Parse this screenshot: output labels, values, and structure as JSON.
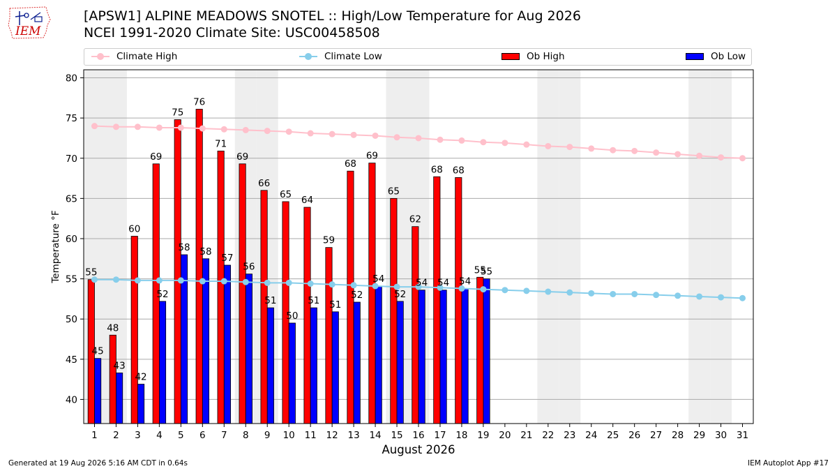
{
  "logo_text": "IEM",
  "title_line1": "[APSW1] ALPINE MEADOWS SNOTEL :: High/Low Temperature for Aug 2026",
  "title_line2": "NCEI 1991-2020 Climate Site: USC00458508",
  "legend": {
    "climate_high": "Climate High",
    "climate_low": "Climate Low",
    "ob_high": "Ob High",
    "ob_low": "Ob Low"
  },
  "footer_left": "Generated at 19 Aug 2026 5:16 AM CDT in 0.64s",
  "footer_right": "IEM Autoplot App #17",
  "colors": {
    "ob_high": "#ff0000",
    "ob_low": "#0000ff",
    "climate_high": "#ffc0cb",
    "climate_low": "#87ceeb",
    "weekend_band": "#eeeeee",
    "grid": "#aaaaaa"
  },
  "chart_data": {
    "type": "bar",
    "xlabel": "August 2026",
    "ylabel": "Temperature °F",
    "ylim": [
      37,
      81
    ],
    "yticks": [
      40,
      45,
      50,
      55,
      60,
      65,
      70,
      75,
      80
    ],
    "grid": "horizontal",
    "legend_position": "top",
    "days": [
      1,
      2,
      3,
      4,
      5,
      6,
      7,
      8,
      9,
      10,
      11,
      12,
      13,
      14,
      15,
      16,
      17,
      18,
      19,
      20,
      21,
      22,
      23,
      24,
      25,
      26,
      27,
      28,
      29,
      30,
      31
    ],
    "shaded_days": [
      1,
      2,
      8,
      9,
      15,
      16,
      22,
      23,
      29,
      30
    ],
    "ob_high": [
      55,
      48,
      60,
      69,
      75,
      76,
      71,
      69,
      66,
      65,
      64,
      59,
      68,
      69,
      65,
      62,
      68,
      68,
      55
    ],
    "ob_low": [
      45,
      43,
      42,
      52,
      58,
      58,
      57,
      56,
      51,
      50,
      51,
      51,
      52,
      54,
      52,
      54,
      54,
      54,
      55
    ],
    "ob_high_labels": [
      "55",
      "48",
      "60",
      "69",
      "75",
      "76",
      "71",
      "69",
      "66",
      "65",
      "64",
      "59",
      "68",
      "69",
      "65",
      "62",
      "68",
      "68",
      "55"
    ],
    "ob_low_labels": [
      "45",
      "43",
      "42",
      "52",
      "58",
      "58",
      "57",
      "56",
      "51",
      "50",
      "51",
      "51",
      "52",
      "54",
      "52",
      "54",
      "54",
      "54",
      "55"
    ],
    "ob_high_plot": [
      54.9,
      48.0,
      60.3,
      69.3,
      74.8,
      76.1,
      70.9,
      69.3,
      66.0,
      64.6,
      63.9,
      58.9,
      68.4,
      69.4,
      65.0,
      61.5,
      67.7,
      67.6,
      55.2
    ],
    "ob_low_plot": [
      45.1,
      43.3,
      41.9,
      52.2,
      58.0,
      57.5,
      56.7,
      55.6,
      51.4,
      49.5,
      51.4,
      50.9,
      52.1,
      54.1,
      52.2,
      53.6,
      53.6,
      53.8,
      55.0
    ],
    "climate_high": [
      74.0,
      73.9,
      73.9,
      73.8,
      73.8,
      73.7,
      73.6,
      73.5,
      73.4,
      73.3,
      73.1,
      73.0,
      72.9,
      72.8,
      72.6,
      72.5,
      72.3,
      72.2,
      72.0,
      71.9,
      71.7,
      71.5,
      71.4,
      71.2,
      71.0,
      70.9,
      70.7,
      70.5,
      70.3,
      70.1,
      70.0
    ],
    "climate_low": [
      54.9,
      54.9,
      54.8,
      54.8,
      54.8,
      54.7,
      54.7,
      54.6,
      54.5,
      54.5,
      54.4,
      54.3,
      54.2,
      54.1,
      54.0,
      54.0,
      53.9,
      53.8,
      53.7,
      53.6,
      53.5,
      53.4,
      53.3,
      53.2,
      53.1,
      53.1,
      53.0,
      52.9,
      52.8,
      52.7,
      52.6
    ]
  }
}
